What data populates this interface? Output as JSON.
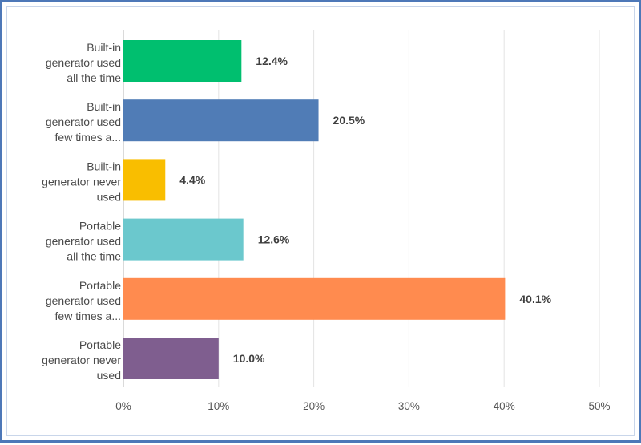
{
  "chart_data": {
    "type": "bar",
    "orientation": "horizontal",
    "categories": [
      [
        "Built-in",
        "generator used",
        "all the time"
      ],
      [
        "Built-in",
        "generator used",
        "few times a..."
      ],
      [
        "Built-in",
        "generator never",
        "used"
      ],
      [
        "Portable",
        "generator used",
        "all the time"
      ],
      [
        "Portable",
        "generator used",
        "few times a..."
      ],
      [
        "Portable",
        "generator never",
        "used"
      ]
    ],
    "values": [
      12.4,
      20.5,
      4.4,
      12.6,
      40.1,
      10.0
    ],
    "value_labels": [
      "12.4%",
      "20.5%",
      "4.4%",
      "12.6%",
      "40.1%",
      "10.0%"
    ],
    "colors": [
      "#00bf6f",
      "#507cb6",
      "#f9be00",
      "#6bc8cd",
      "#ff8b4f",
      "#7f5e8f"
    ],
    "xlim": [
      0,
      50
    ],
    "xticks": [
      0,
      10,
      20,
      30,
      40,
      50
    ],
    "xtick_labels": [
      "0%",
      "10%",
      "20%",
      "30%",
      "40%",
      "50%"
    ],
    "grid": true
  }
}
